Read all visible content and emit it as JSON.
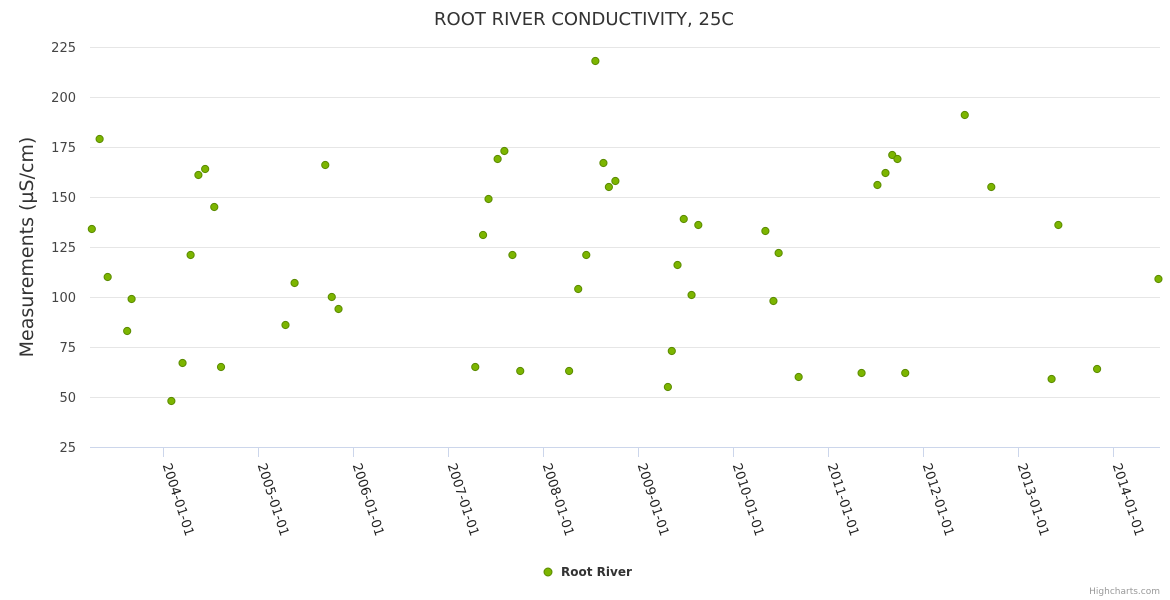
{
  "chart_data": {
    "type": "scatter",
    "title": "ROOT RIVER CONDUCTIVITY, 25C",
    "xlabel": "",
    "ylabel": "Measurements (µS/cm)",
    "ylim": [
      25,
      225
    ],
    "yticks": [
      25,
      50,
      75,
      100,
      125,
      150,
      175,
      200,
      225
    ],
    "xlim": [
      "2003-03-25",
      "2014-07-01"
    ],
    "xticks": [
      "2004-01-01",
      "2005-01-01",
      "2006-01-01",
      "2007-01-01",
      "2008-01-01",
      "2009-01-01",
      "2010-01-01",
      "2011-01-01",
      "2012-01-01",
      "2013-01-01",
      "2014-01-01"
    ],
    "grid": true,
    "legend": "bottom-center",
    "series_color": "#7cb500",
    "series_edge_color": "#5a8a00",
    "series": [
      {
        "name": "Root River",
        "points": [
          [
            "2003-04-01",
            134
          ],
          [
            "2003-05-01",
            179
          ],
          [
            "2003-06-01",
            110
          ],
          [
            "2003-08-15",
            83
          ],
          [
            "2003-09-01",
            99
          ],
          [
            "2004-02-01",
            48
          ],
          [
            "2004-03-15",
            67
          ],
          [
            "2004-04-15",
            121
          ],
          [
            "2004-05-15",
            161
          ],
          [
            "2004-06-10",
            164
          ],
          [
            "2004-07-15",
            145
          ],
          [
            "2004-08-10",
            65
          ],
          [
            "2005-04-15",
            86
          ],
          [
            "2005-05-20",
            107
          ],
          [
            "2005-09-15",
            166
          ],
          [
            "2005-10-10",
            100
          ],
          [
            "2005-11-05",
            94
          ],
          [
            "2007-04-15",
            65
          ],
          [
            "2007-05-15",
            131
          ],
          [
            "2007-06-05",
            149
          ],
          [
            "2007-07-10",
            169
          ],
          [
            "2007-08-05",
            173
          ],
          [
            "2007-09-05",
            121
          ],
          [
            "2007-10-05",
            63
          ],
          [
            "2008-04-10",
            63
          ],
          [
            "2008-05-15",
            104
          ],
          [
            "2008-06-15",
            121
          ],
          [
            "2008-07-20",
            218
          ],
          [
            "2008-08-20",
            167
          ],
          [
            "2008-09-10",
            155
          ],
          [
            "2008-10-05",
            158
          ],
          [
            "2009-04-25",
            55
          ],
          [
            "2009-05-10",
            73
          ],
          [
            "2009-06-01",
            116
          ],
          [
            "2009-06-25",
            139
          ],
          [
            "2009-07-25",
            101
          ],
          [
            "2009-08-20",
            136
          ],
          [
            "2010-05-05",
            133
          ],
          [
            "2010-06-05",
            98
          ],
          [
            "2010-06-25",
            122
          ],
          [
            "2010-09-10",
            60
          ],
          [
            "2011-05-10",
            62
          ],
          [
            "2011-07-10",
            156
          ],
          [
            "2011-08-10",
            162
          ],
          [
            "2011-09-05",
            171
          ],
          [
            "2011-09-25",
            169
          ],
          [
            "2011-10-25",
            62
          ],
          [
            "2012-06-10",
            191
          ],
          [
            "2012-09-20",
            155
          ],
          [
            "2013-05-10",
            59
          ],
          [
            "2013-06-05",
            136
          ],
          [
            "2013-11-01",
            64
          ],
          [
            "2014-06-25",
            109
          ]
        ]
      }
    ]
  },
  "credits": "Highcharts.com"
}
